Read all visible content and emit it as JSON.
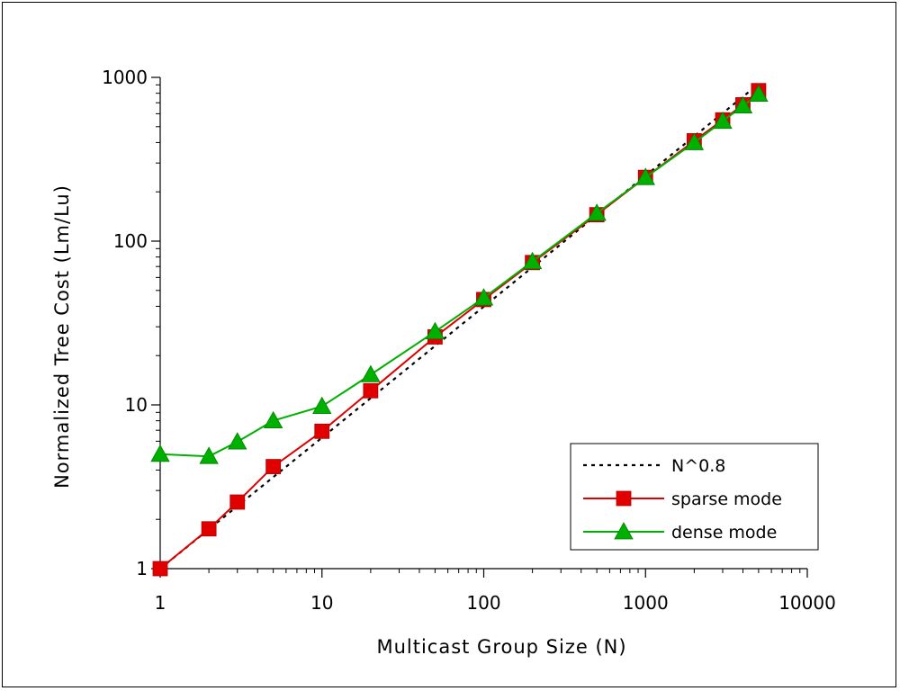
{
  "chart_data": {
    "type": "line",
    "xscale": "log",
    "yscale": "log",
    "xlabel": "Multicast Group Size (N)",
    "ylabel": "Normalized Tree Cost (Lm/Lu)",
    "xlim": [
      1,
      10000
    ],
    "ylim": [
      1,
      1000
    ],
    "x_ticks": [
      1,
      10,
      100,
      1000,
      10000
    ],
    "x_tick_labels": [
      "1",
      "10",
      "100",
      "1000",
      "10000"
    ],
    "y_ticks": [
      1,
      10,
      100,
      1000
    ],
    "y_tick_labels": [
      "1",
      "10",
      "100",
      "1000"
    ],
    "grid": false,
    "legend_position": "bottom-right",
    "series": [
      {
        "name": "N^0.8",
        "style": "dotted",
        "color": "#000000",
        "marker": "none",
        "x": [
          1,
          2,
          3,
          5,
          10,
          20,
          50,
          100,
          200,
          500,
          1000,
          2000,
          3000,
          4000,
          5000
        ],
        "y": [
          1.0,
          1.74,
          2.41,
          3.62,
          6.31,
          10.99,
          22.9,
          39.8,
          69.3,
          144.3,
          251.2,
          437.3,
          604.7,
          761.4,
          910.3
        ]
      },
      {
        "name": "sparse mode",
        "style": "solid",
        "color": "#e00000",
        "marker": "square",
        "x": [
          1,
          2,
          3,
          5,
          10,
          20,
          50,
          100,
          200,
          500,
          1000,
          2000,
          3000,
          4000,
          5000
        ],
        "y": [
          1.0,
          1.75,
          2.55,
          4.2,
          6.9,
          12.2,
          26,
          44,
          74,
          145,
          245,
          410,
          550,
          680,
          830
        ]
      },
      {
        "name": "dense mode",
        "style": "solid",
        "color": "#00b000",
        "marker": "triangle",
        "x": [
          1,
          2,
          3,
          5,
          10,
          20,
          50,
          100,
          200,
          500,
          1000,
          2000,
          3000,
          4000,
          5000
        ],
        "y": [
          5.0,
          4.85,
          5.95,
          8.0,
          9.8,
          15.3,
          28,
          45,
          75,
          148,
          245,
          400,
          540,
          670,
          790
        ]
      }
    ]
  }
}
